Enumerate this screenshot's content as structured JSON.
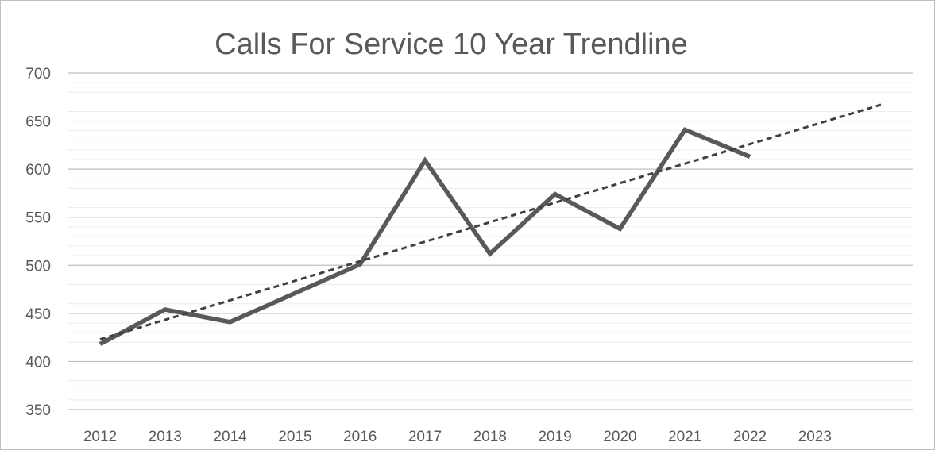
{
  "chart_data": {
    "type": "line",
    "title": "Calls For Service 10 Year Trendline",
    "xlabel": "",
    "ylabel": "",
    "categories": [
      "2012",
      "2013",
      "2014",
      "2015",
      "2016",
      "2017",
      "2018",
      "2019",
      "2020",
      "2021",
      "2022",
      "2023"
    ],
    "series": [
      {
        "values": [
          418,
          454,
          441,
          471,
          501,
          609,
          512,
          574,
          538,
          641,
          613,
          null
        ],
        "color": "#595959",
        "style": "solid"
      }
    ],
    "trendline": {
      "type": "linear",
      "start_value": 423,
      "end_value": 667,
      "end_extends_past_last_category": true,
      "color": "#404040",
      "style": "dashed"
    },
    "ylim": [
      350,
      700
    ],
    "yticks": [
      350,
      400,
      450,
      500,
      550,
      600,
      650,
      700
    ],
    "major_grid": true,
    "minor_grid": true,
    "minor_step": 10,
    "legend": "none",
    "colors": {
      "title": "#595959",
      "tick_labels": "#595959",
      "major_grid": "#bfbfbf",
      "minor_grid": "#ececec"
    }
  }
}
